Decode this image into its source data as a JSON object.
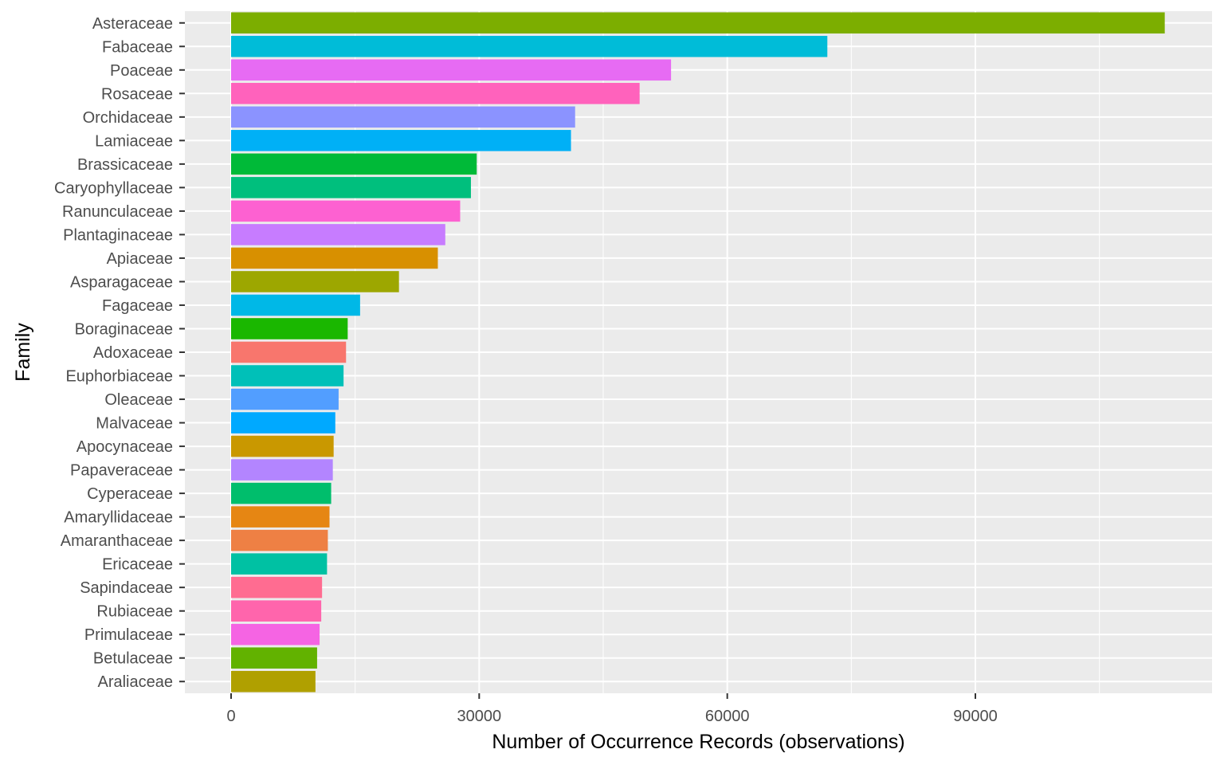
{
  "chart_data": {
    "type": "bar",
    "orientation": "horizontal",
    "title": "",
    "xlabel": "Number of Occurrence Records (observations)",
    "ylabel": "Family",
    "xlim": [
      -3800,
      119500
    ],
    "x_ticks": [
      0,
      30000,
      60000,
      90000
    ],
    "x_tick_labels": [
      "0",
      "30000",
      "60000",
      "90000"
    ],
    "grid": true,
    "legend": "none",
    "panel_background": "#ebebeb",
    "gridline_color": "#ffffff",
    "categories": [
      "Asteraceae",
      "Fabaceae",
      "Poaceae",
      "Rosaceae",
      "Orchidaceae",
      "Lamiaceae",
      "Brassicaceae",
      "Caryophyllaceae",
      "Ranunculaceae",
      "Plantaginaceae",
      "Apiaceae",
      "Asparagaceae",
      "Fagaceae",
      "Boraginaceae",
      "Adoxaceae",
      "Euphorbiaceae",
      "Oleaceae",
      "Malvaceae",
      "Apocynaceae",
      "Papaveraceae",
      "Cyperaceae",
      "Amaryllidaceae",
      "Amaranthaceae",
      "Ericaceae",
      "Sapindaceae",
      "Rubiaceae",
      "Primulaceae",
      "Betulaceae",
      "Araliaceae"
    ],
    "values": [
      112900,
      72100,
      53200,
      49400,
      41600,
      41100,
      29700,
      29000,
      27700,
      25900,
      25000,
      20300,
      15600,
      14100,
      13900,
      13600,
      13000,
      12600,
      12400,
      12300,
      12100,
      11900,
      11700,
      11600,
      11000,
      10900,
      10700,
      10400,
      10200
    ],
    "colors": [
      "#7CAE00",
      "#00BCD8",
      "#E76BF3",
      "#FF62BC",
      "#8B93FF",
      "#00B0F6",
      "#00BA38",
      "#00BF7D",
      "#FD61D1",
      "#C77CFF",
      "#D89000",
      "#9DA700",
      "#00B8E7",
      "#1AB700",
      "#F8766D",
      "#00C0B8",
      "#529EFF",
      "#00A9FF",
      "#C99800",
      "#B385FF",
      "#00BE6C",
      "#E68613",
      "#EE8044",
      "#00C1A3",
      "#FF6C91",
      "#FF65AC",
      "#F564E3",
      "#62B200",
      "#B0A000"
    ]
  }
}
